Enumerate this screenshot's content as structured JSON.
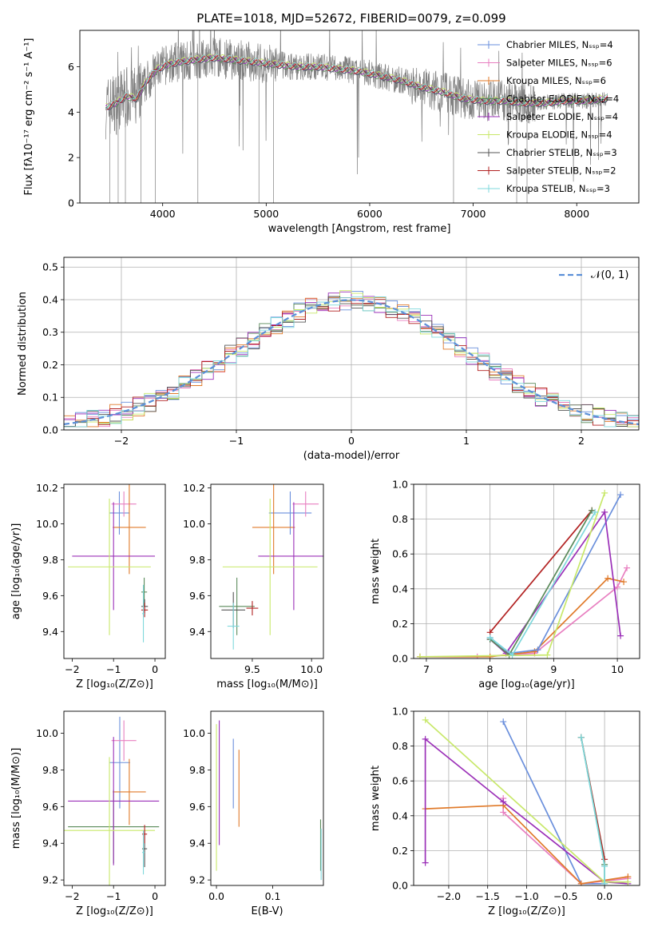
{
  "chart_data": [
    {
      "type": "line",
      "title": "PLATE=1018, MJD=52672, FIBERID=0079, z=0.099",
      "xlabel": "wavelength [Angstrom, rest frame]",
      "ylabel": "Flux [fλ10⁻¹⁷ erg cm⁻² s⁻¹ A⁻¹]",
      "xlim": [
        3200,
        8600
      ],
      "ylim": [
        0,
        7.6
      ],
      "xticks": [
        "4000",
        "5000",
        "6000",
        "7000",
        "8000"
      ],
      "yticks": [
        "0",
        "2",
        "4",
        "6"
      ],
      "grid": false,
      "legend_position": "top-right",
      "series": [
        {
          "name": "Chabrier MILES, Nₛₛₚ=4",
          "color": "#6a8fdc"
        },
        {
          "name": "Salpeter MILES, Nₛₛₚ=6",
          "color": "#e87fc0"
        },
        {
          "name": "Kroupa MILES, Nₛₛₚ=6",
          "color": "#e07a2a"
        },
        {
          "name": "Chabrier ELODIE, Nₛₛₚ=4",
          "color": "#5a8a5a"
        },
        {
          "name": "Salpeter ELODIE, Nₛₛₚ=4",
          "color": "#9b30b8"
        },
        {
          "name": "Kroupa ELODIE, Nₛₛₚ=4",
          "color": "#c8e86a"
        },
        {
          "name": "Chabrier STELIB, Nₛₛₚ=3",
          "color": "#555555"
        },
        {
          "name": "Salpeter STELIB, Nₛₛₚ=2",
          "color": "#b22222"
        },
        {
          "name": "Kroupa STELIB, Nₛₛₚ=3",
          "color": "#7fd8dc"
        }
      ],
      "data_color": "#808080",
      "x": [
        3450,
        3550,
        3650,
        3750,
        3850,
        3950,
        4050,
        4150,
        4300,
        4500,
        4700,
        4900,
        5100,
        5300,
        5500,
        5700,
        5900,
        6100,
        6300,
        6500,
        6700,
        6900,
        7100,
        7300,
        7500,
        7700,
        7900,
        8100,
        8300
      ],
      "y": [
        4.2,
        4.4,
        4.7,
        4.6,
        5.4,
        5.9,
        6.1,
        6.2,
        6.3,
        6.4,
        6.3,
        6.2,
        6.1,
        6.0,
        6.0,
        5.9,
        5.8,
        5.6,
        5.4,
        5.1,
        4.9,
        4.6,
        4.5,
        4.5,
        4.4,
        4.4,
        4.5,
        4.5,
        4.6
      ]
    },
    {
      "type": "line",
      "xlabel": "(data-model)/error",
      "ylabel": "Normed distribution",
      "xlim": [
        -2.5,
        2.5
      ],
      "ylim": [
        0,
        0.53
      ],
      "xticks": [
        "−2",
        "−1",
        "0",
        "1",
        "2"
      ],
      "yticks": [
        "0.0",
        "0.1",
        "0.2",
        "0.3",
        "0.4",
        "0.5"
      ],
      "grid": true,
      "legend_position": "top-right",
      "legend": "𝒩(0, 1)",
      "normal_color": "#5b8fd8"
    },
    {
      "type": "scatter",
      "xlabel": "Z [log₁₀(Z/Z⊙)]",
      "ylabel": "age  [log₁₀(age/yr)]",
      "xlim": [
        -2.2,
        0.25
      ],
      "ylim": [
        9.25,
        10.22
      ],
      "xticks": [
        "−2",
        "−1",
        "0"
      ],
      "yticks": [
        "9.4",
        "9.6",
        "9.8",
        "10.0",
        "10.2"
      ],
      "points": [
        {
          "color": "#6a8fdc",
          "x": -0.86,
          "xerr": 0.25,
          "y": 10.06,
          "yerr": 0.12
        },
        {
          "color": "#e87fc0",
          "x": -0.75,
          "xerr": 0.3,
          "y": 10.11,
          "yerr": 0.07
        },
        {
          "color": "#e07a2a",
          "x": -0.62,
          "xerr": 0.4,
          "y": 9.98,
          "yerr": 0.26
        },
        {
          "color": "#5a8a5a",
          "x": -0.26,
          "xerr": 0.07,
          "y": 9.62,
          "yerr": 0.08
        },
        {
          "color": "#9b30b8",
          "x": -1.0,
          "xerr": 1.0,
          "y": 9.82,
          "yerr": 0.3
        },
        {
          "color": "#c8e86a",
          "x": -1.1,
          "xerr": 1.0,
          "y": 9.76,
          "yerr": 0.38
        },
        {
          "color": "#555555",
          "x": -0.25,
          "xerr": 0.08,
          "y": 9.54,
          "yerr": 0.04
        },
        {
          "color": "#b22222",
          "x": -0.25,
          "xerr": 0.08,
          "y": 9.52,
          "yerr": 0.04
        },
        {
          "color": "#7fd8dc",
          "x": -0.28,
          "xerr": 0.03,
          "y": 9.5,
          "yerr": 0.16
        }
      ]
    },
    {
      "type": "scatter",
      "xlabel": "mass [log₁₀(M/M⊙)]",
      "xlim": [
        9.15,
        10.1
      ],
      "ylim": [
        9.25,
        10.22
      ],
      "xticks": [
        "9.5",
        "10.0"
      ],
      "yticks": [
        "9.4",
        "9.6",
        "9.8",
        "10.0",
        "10.2"
      ],
      "points": [
        {
          "color": "#6a8fdc",
          "x": 9.82,
          "xerr": 0.18,
          "y": 10.06,
          "yerr": 0.12
        },
        {
          "color": "#e87fc0",
          "x": 9.95,
          "xerr": 0.11,
          "y": 10.11,
          "yerr": 0.07
        },
        {
          "color": "#e07a2a",
          "x": 9.68,
          "xerr": 0.18,
          "y": 9.98,
          "yerr": 0.26
        },
        {
          "color": "#5a8a5a",
          "x": 9.37,
          "xerr": 0.15,
          "y": 9.54,
          "yerr": 0.16
        },
        {
          "color": "#9b30b8",
          "x": 9.85,
          "xerr": 0.3,
          "y": 9.82,
          "yerr": 0.3
        },
        {
          "color": "#c8e86a",
          "x": 9.65,
          "xerr": 0.4,
          "y": 9.76,
          "yerr": 0.38
        },
        {
          "color": "#555555",
          "x": 9.34,
          "xerr": 0.1,
          "y": 9.52,
          "yerr": 0.1
        },
        {
          "color": "#b22222",
          "x": 9.5,
          "xerr": 0.05,
          "y": 9.53,
          "yerr": 0.04
        },
        {
          "color": "#7fd8dc",
          "x": 9.34,
          "xerr": 0.05,
          "y": 9.43,
          "yerr": 0.13
        }
      ]
    },
    {
      "type": "line",
      "xlabel": "age  [log₁₀(age/yr)]",
      "ylabel": "mass weight",
      "xlim": [
        6.8,
        10.35
      ],
      "ylim": [
        0,
        1.0
      ],
      "xticks": [
        "7",
        "8",
        "9",
        "10"
      ],
      "yticks": [
        "0.0",
        "0.2",
        "0.4",
        "0.6",
        "0.8",
        "1.0"
      ],
      "grid": true,
      "series": [
        {
          "color": "#e87fc0",
          "x": [
            6.9,
            7.8,
            8.7,
            10.0,
            10.15
          ],
          "y": [
            0.01,
            0.01,
            0.03,
            0.41,
            0.52
          ]
        },
        {
          "color": "#e07a2a",
          "x": [
            6.9,
            8.0,
            8.7,
            9.85,
            10.1
          ],
          "y": [
            0.01,
            0.01,
            0.04,
            0.46,
            0.44
          ]
        },
        {
          "color": "#6a8fdc",
          "x": [
            8.0,
            8.3,
            8.75,
            10.05
          ],
          "y": [
            0.12,
            0.03,
            0.05,
            0.94
          ]
        },
        {
          "color": "#b22222",
          "x": [
            8.0,
            9.6
          ],
          "y": [
            0.15,
            0.85
          ]
        },
        {
          "color": "#9b30b8",
          "x": [
            8.0,
            8.25,
            9.8,
            10.05
          ],
          "y": [
            0.11,
            0.03,
            0.84,
            0.13
          ]
        },
        {
          "color": "#5a8a5a",
          "x": [
            8.0,
            8.3,
            9.6
          ],
          "y": [
            0.11,
            0.02,
            0.85
          ]
        },
        {
          "color": "#c8e86a",
          "x": [
            6.9,
            8.9,
            9.8
          ],
          "y": [
            0.01,
            0.02,
            0.95
          ]
        },
        {
          "color": "#7fd8dc",
          "x": [
            8.0,
            8.35,
            9.65
          ],
          "y": [
            0.12,
            0.02,
            0.84
          ]
        }
      ]
    },
    {
      "type": "scatter",
      "xlabel": "Z [log₁₀(Z/Z⊙)]",
      "ylabel": "mass [log₁₀(M/M⊙)]",
      "xlim": [
        -2.2,
        0.25
      ],
      "ylim": [
        9.17,
        10.12
      ],
      "xticks": [
        "−2",
        "−1",
        "0"
      ],
      "yticks": [
        "9.2",
        "9.4",
        "9.6",
        "9.8",
        "10.0"
      ],
      "points": [
        {
          "color": "#6a8fdc",
          "x": -0.85,
          "xerr": 0.25,
          "y": 9.84,
          "yerr": 0.25
        },
        {
          "color": "#e87fc0",
          "x": -0.75,
          "xerr": 0.3,
          "y": 9.96,
          "yerr": 0.11
        },
        {
          "color": "#e07a2a",
          "x": -0.62,
          "xerr": 0.4,
          "y": 9.68,
          "yerr": 0.18
        },
        {
          "color": "#5a8a5a",
          "x": -1.0,
          "xerr": 1.1,
          "y": 9.49,
          "yerr": 0.2
        },
        {
          "color": "#9b30b8",
          "x": -1.0,
          "xerr": 1.1,
          "y": 9.63,
          "yerr": 0.35
        },
        {
          "color": "#c8e86a",
          "x": -1.1,
          "xerr": 1.1,
          "y": 9.47,
          "yerr": 0.4
        },
        {
          "color": "#555555",
          "x": -0.25,
          "xerr": 0.06,
          "y": 9.37,
          "yerr": 0.1
        },
        {
          "color": "#b22222",
          "x": -0.25,
          "xerr": 0.06,
          "y": 9.45,
          "yerr": 0.05
        },
        {
          "color": "#7fd8dc",
          "x": -0.28,
          "xerr": 0.03,
          "y": 9.35,
          "yerr": 0.12
        }
      ]
    },
    {
      "type": "scatter",
      "xlabel": "E(B-V)",
      "xlim": [
        -0.01,
        0.19
      ],
      "ylim": [
        9.17,
        10.12
      ],
      "xticks": [
        "0.0",
        "0.1"
      ],
      "yticks": [
        "9.2",
        "9.4",
        "9.6",
        "9.8",
        "10.0"
      ],
      "points": [
        {
          "color": "#6a8fdc",
          "x": 0.03,
          "y": 9.78,
          "yerr": 0.19
        },
        {
          "color": "#e07a2a",
          "x": 0.04,
          "y": 9.7,
          "yerr": 0.21
        },
        {
          "color": "#9b30b8",
          "x": 0.005,
          "y": 9.73,
          "yerr": 0.34
        },
        {
          "color": "#c8e86a",
          "x": 0.0,
          "y": 9.65,
          "yerr": 0.4
        },
        {
          "color": "#5a8a5a",
          "x": 0.185,
          "y": 9.39,
          "yerr": 0.14
        },
        {
          "color": "#7fd8dc",
          "x": 0.186,
          "y": 9.34,
          "yerr": 0.14
        }
      ]
    },
    {
      "type": "line",
      "xlabel": "Z [log₁₀(Z/Z⊙)]",
      "ylabel": "mass weight",
      "xlim": [
        -2.45,
        0.45
      ],
      "ylim": [
        0,
        1.0
      ],
      "xticks": [
        "−2.0",
        "−1.5",
        "−1.0",
        "−0.5",
        "0.0"
      ],
      "yticks": [
        "0.0",
        "0.2",
        "0.4",
        "0.6",
        "0.8",
        "1.0"
      ],
      "grid": true,
      "series": [
        {
          "color": "#6a8fdc",
          "x": [
            -1.3,
            -0.3,
            0.0
          ],
          "y": [
            0.94,
            0.01,
            0.01
          ]
        },
        {
          "color": "#e87fc0",
          "x": [
            -1.3,
            -1.3,
            -0.3,
            0.3
          ],
          "y": [
            0.5,
            0.42,
            0.01,
            0.04
          ]
        },
        {
          "color": "#e07a2a",
          "x": [
            -2.3,
            -1.3,
            -0.3,
            0.3
          ],
          "y": [
            0.44,
            0.46,
            0.01,
            0.05
          ]
        },
        {
          "color": "#b22222",
          "x": [
            -0.3,
            0.0
          ],
          "y": [
            0.85,
            0.15
          ]
        },
        {
          "color": "#5a8a5a",
          "x": [
            -0.3,
            0.0,
            0.0
          ],
          "y": [
            0.85,
            0.12,
            0.02
          ]
        },
        {
          "color": "#9b30b8",
          "x": [
            -2.3,
            -2.3,
            -1.3,
            0.0,
            0.3
          ],
          "y": [
            0.13,
            0.84,
            0.48,
            0.02,
            0.01
          ]
        },
        {
          "color": "#c8e86a",
          "x": [
            -2.3,
            0.0,
            0.3
          ],
          "y": [
            0.95,
            0.02,
            0.02
          ]
        },
        {
          "color": "#7fd8dc",
          "x": [
            -0.3,
            0.0,
            0.0
          ],
          "y": [
            0.85,
            0.11,
            0.01
          ]
        }
      ]
    }
  ]
}
